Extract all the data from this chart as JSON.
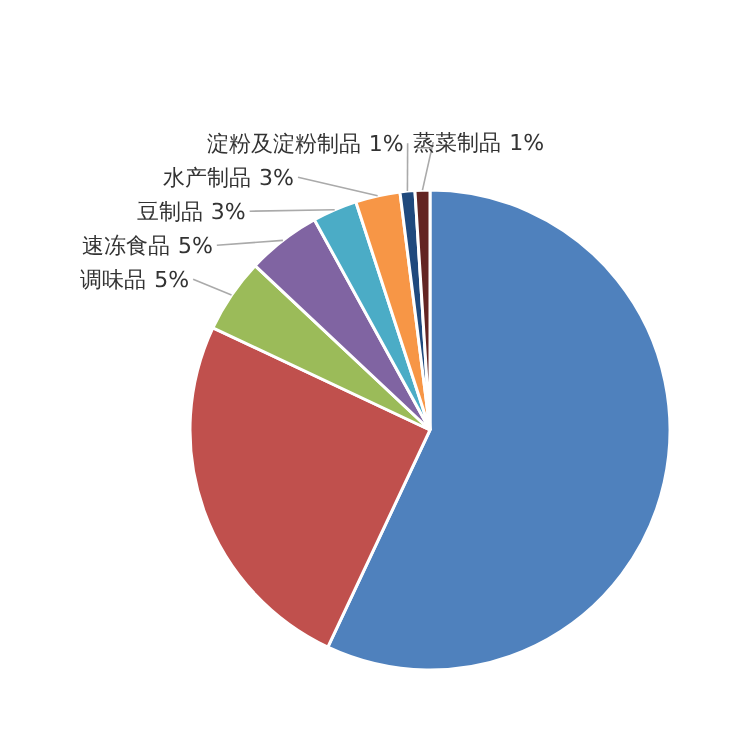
{
  "chart_data": {
    "type": "pie",
    "categories": [
      null,
      null,
      "调味品",
      "速冻食品",
      "豆制品",
      "水产制品",
      "淀粉及淀粉制品",
      "蒸菜制品"
    ],
    "values": [
      57,
      25,
      5,
      5,
      3,
      3,
      1,
      1
    ],
    "value_labels": [
      null,
      null,
      "5%",
      "5%",
      "3%",
      "3%",
      "1%",
      "1%"
    ],
    "colors": [
      "#4f81bd",
      "#c0504d",
      "#9bbb59",
      "#8064a2",
      "#4bacc6",
      "#f79646",
      "#1f497d",
      "#632523"
    ]
  }
}
